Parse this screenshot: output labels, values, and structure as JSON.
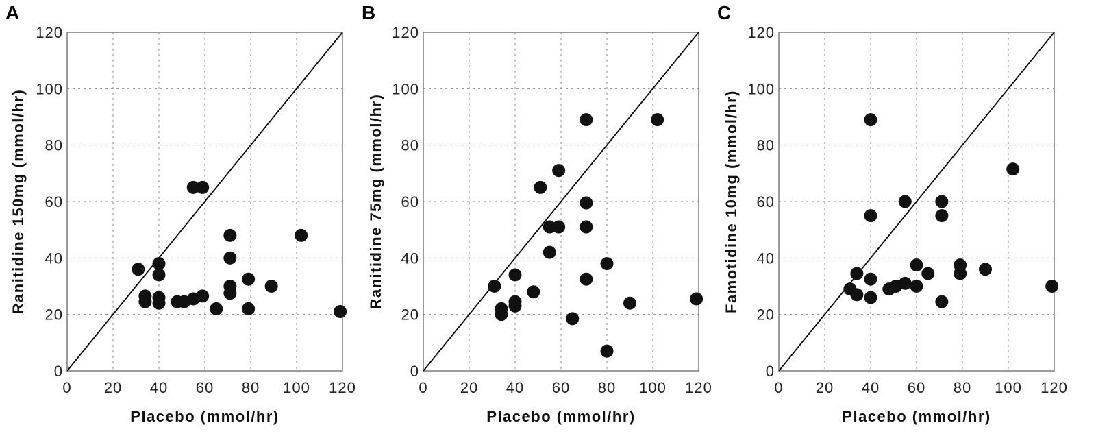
{
  "chart_data": [
    {
      "type": "scatter",
      "panel_label": "A",
      "xlabel": "Placebo (mmol/hr)",
      "ylabel": "Ranitidine 150mg (mmol/hr)",
      "xlim": [
        0,
        120
      ],
      "ylim": [
        0,
        120
      ],
      "xticks": [
        "0",
        "20",
        "40",
        "60",
        "80",
        "100",
        "120"
      ],
      "yticks": [
        "0",
        "20",
        "40",
        "60",
        "80",
        "100",
        "120"
      ],
      "grid": true,
      "identity_line": true,
      "points": [
        {
          "x": 31,
          "y": 36
        },
        {
          "x": 34,
          "y": 26.5
        },
        {
          "x": 34,
          "y": 24.5
        },
        {
          "x": 40,
          "y": 38
        },
        {
          "x": 40,
          "y": 34
        },
        {
          "x": 40,
          "y": 26
        },
        {
          "x": 40,
          "y": 24
        },
        {
          "x": 48,
          "y": 24.5
        },
        {
          "x": 51,
          "y": 24.5
        },
        {
          "x": 55,
          "y": 25.5
        },
        {
          "x": 55,
          "y": 65
        },
        {
          "x": 59,
          "y": 65
        },
        {
          "x": 59,
          "y": 26.5
        },
        {
          "x": 65,
          "y": 22
        },
        {
          "x": 71,
          "y": 48
        },
        {
          "x": 71,
          "y": 40
        },
        {
          "x": 71,
          "y": 30
        },
        {
          "x": 71,
          "y": 27.5
        },
        {
          "x": 79,
          "y": 32.5
        },
        {
          "x": 79,
          "y": 22
        },
        {
          "x": 89,
          "y": 30
        },
        {
          "x": 102,
          "y": 48
        },
        {
          "x": 119,
          "y": 21
        }
      ]
    },
    {
      "type": "scatter",
      "panel_label": "B",
      "xlabel": "Placebo (mmol/hr)",
      "ylabel": "Ranitidine 75mg (mmol/hr)",
      "xlim": [
        0,
        120
      ],
      "ylim": [
        0,
        120
      ],
      "xticks": [
        "0",
        "20",
        "40",
        "60",
        "80",
        "100",
        "120"
      ],
      "yticks": [
        "0",
        "20",
        "40",
        "60",
        "80",
        "100",
        "120"
      ],
      "grid": true,
      "identity_line": true,
      "points": [
        {
          "x": 31,
          "y": 30
        },
        {
          "x": 34,
          "y": 22
        },
        {
          "x": 34,
          "y": 20
        },
        {
          "x": 40,
          "y": 34
        },
        {
          "x": 40,
          "y": 24.5
        },
        {
          "x": 40,
          "y": 23
        },
        {
          "x": 48,
          "y": 28
        },
        {
          "x": 51,
          "y": 65
        },
        {
          "x": 55,
          "y": 51
        },
        {
          "x": 55,
          "y": 42
        },
        {
          "x": 59,
          "y": 71
        },
        {
          "x": 59,
          "y": 51
        },
        {
          "x": 65,
          "y": 18.5
        },
        {
          "x": 71,
          "y": 89
        },
        {
          "x": 71,
          "y": 59.5
        },
        {
          "x": 71,
          "y": 51
        },
        {
          "x": 71,
          "y": 32.5
        },
        {
          "x": 80,
          "y": 38
        },
        {
          "x": 80,
          "y": 7
        },
        {
          "x": 90,
          "y": 24
        },
        {
          "x": 102,
          "y": 89
        },
        {
          "x": 119,
          "y": 25.5
        }
      ]
    },
    {
      "type": "scatter",
      "panel_label": "C",
      "xlabel": "Placebo (mmol/hr)",
      "ylabel": "Famotidine 10mg (mmol/hr)",
      "xlim": [
        0,
        120
      ],
      "ylim": [
        0,
        120
      ],
      "xticks": [
        "0",
        "20",
        "40",
        "60",
        "80",
        "100",
        "120"
      ],
      "yticks": [
        "0",
        "20",
        "40",
        "60",
        "80",
        "100",
        "120"
      ],
      "grid": true,
      "identity_line": true,
      "points": [
        {
          "x": 31,
          "y": 29
        },
        {
          "x": 34,
          "y": 34.5
        },
        {
          "x": 34,
          "y": 27
        },
        {
          "x": 40,
          "y": 89
        },
        {
          "x": 40,
          "y": 55
        },
        {
          "x": 40,
          "y": 32.5
        },
        {
          "x": 40,
          "y": 26
        },
        {
          "x": 48,
          "y": 29
        },
        {
          "x": 51,
          "y": 30
        },
        {
          "x": 55,
          "y": 60
        },
        {
          "x": 55,
          "y": 31
        },
        {
          "x": 60,
          "y": 37.5
        },
        {
          "x": 60,
          "y": 30
        },
        {
          "x": 65,
          "y": 34.5
        },
        {
          "x": 71,
          "y": 60
        },
        {
          "x": 71,
          "y": 55
        },
        {
          "x": 71,
          "y": 24.5
        },
        {
          "x": 79,
          "y": 37.5
        },
        {
          "x": 79,
          "y": 34.5
        },
        {
          "x": 90,
          "y": 36
        },
        {
          "x": 102,
          "y": 71.5
        },
        {
          "x": 119,
          "y": 30
        }
      ]
    }
  ]
}
